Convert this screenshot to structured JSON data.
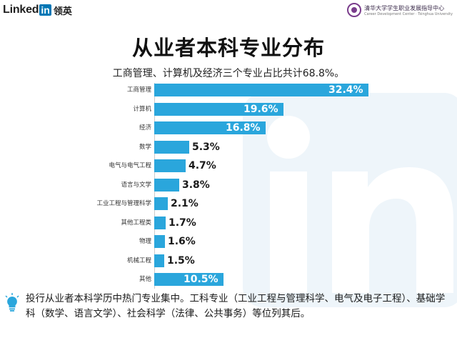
{
  "header": {
    "brand_linked": "Linked",
    "brand_in": "in",
    "brand_cn": "领英",
    "partner_name": "清华大学学生职业发展指导中心",
    "partner_subtitle": "Career Development Center · Tsinghua University"
  },
  "title": "从业者本科专业分布",
  "subtitle": "工商管理、计算机及经济三个专业占比共计68.8%。",
  "chart_data": {
    "type": "bar",
    "orientation": "horizontal",
    "unit": "%",
    "categories": [
      "工商管理",
      "计算机",
      "经济",
      "数学",
      "电气与电气工程",
      "语言与文学",
      "工业工程与管理科学",
      "其他工程类",
      "物理",
      "机械工程",
      "其他"
    ],
    "values": [
      32.4,
      19.6,
      16.8,
      5.3,
      4.7,
      3.8,
      2.1,
      1.7,
      1.6,
      1.5,
      10.5
    ],
    "value_labels": [
      "32.4%",
      "19.6%",
      "16.8%",
      "5.3%",
      "4.7%",
      "3.8%",
      "2.1%",
      "1.7%",
      "1.6%",
      "1.5%",
      "10.5%"
    ],
    "bar_color": "#2aa6dc",
    "xlim": [
      0,
      32.4
    ],
    "grid": false,
    "legend": "none"
  },
  "note": {
    "icon": "lightbulb-icon",
    "icon_color": "#2aa6dc",
    "text": "投行从业者本科学历中热门专业集中。工科专业（工业工程与管理科学、电气及电子工程）、基础学科（数学、语言文学）、社会科学（法律、公共事务）等位列其后。"
  },
  "colors": {
    "accent": "#2aa6dc",
    "brand": "#0077b5"
  }
}
